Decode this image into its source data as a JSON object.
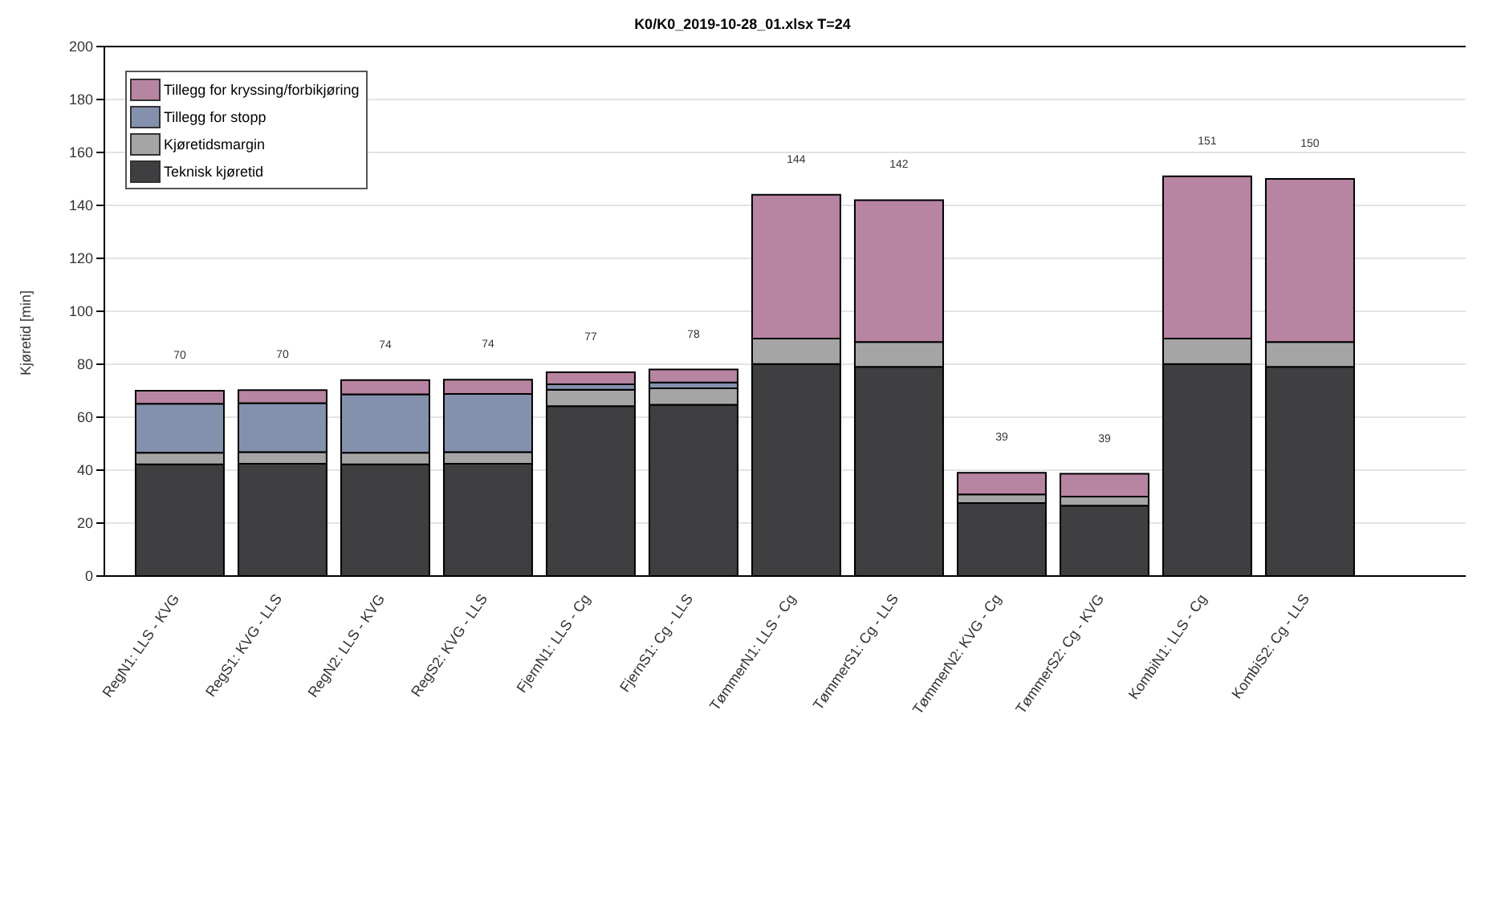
{
  "chart_data": {
    "type": "bar",
    "title": "K0/K0_2019-10-28_01.xlsx T=24",
    "ylabel": "Kjøretid [min]",
    "categories": [
      "RegN1: LLS - KVG",
      "RegS1: KVG - LLS",
      "RegN2: LLS - KVG",
      "RegS2: KVG - LLS",
      "FjernN1:  LLS - Cg",
      "FjernS1:  Cg - LLS",
      "TømmerN1: LLS - Cg",
      "TømmerS1:  Cg - LLS",
      "TømmerN2: KVG - Cg",
      "TømmerS2:  Cg - KVG",
      "KombiN1: LLS - Cg",
      "KombiS2:  Cg - LLS"
    ],
    "stacked": true,
    "series": [
      {
        "name": "Teknisk kjøretid",
        "color": "#3f3f42",
        "values": [
          42.2,
          42.4,
          42.2,
          42.4,
          64.2,
          64.7,
          80.1,
          79,
          27.6,
          26.6,
          80.1,
          79
        ]
      },
      {
        "name": "Kjøretidsmargin",
        "color": "#a5a5a5",
        "values": [
          4.4,
          4.4,
          4.4,
          4.4,
          6.2,
          6.2,
          9.6,
          9.4,
          3.2,
          3.4,
          9.6,
          9.4
        ]
      },
      {
        "name": "Tillegg for stopp",
        "color": "#8491ad",
        "values": [
          18.5,
          18.5,
          22,
          22,
          2,
          2.2,
          0,
          0,
          0,
          0,
          0,
          0
        ]
      },
      {
        "name": "Tillegg for kryssing/forbikjøring",
        "color": "#b784a2",
        "values": [
          4.9,
          4.9,
          5.4,
          5.4,
          4.6,
          4.9,
          54.3,
          53.6,
          8.2,
          8.6,
          61.3,
          61.6
        ]
      }
    ],
    "totals": [
      "70",
      "70",
      "74",
      "74",
      "77",
      "78",
      "144",
      "142",
      "39",
      "39",
      "151",
      "150"
    ],
    "ylim": [
      0,
      200
    ],
    "yticks": [
      0,
      20,
      40,
      60,
      80,
      100,
      120,
      140,
      160,
      180,
      200
    ],
    "grid": "y",
    "legend": "top left"
  }
}
